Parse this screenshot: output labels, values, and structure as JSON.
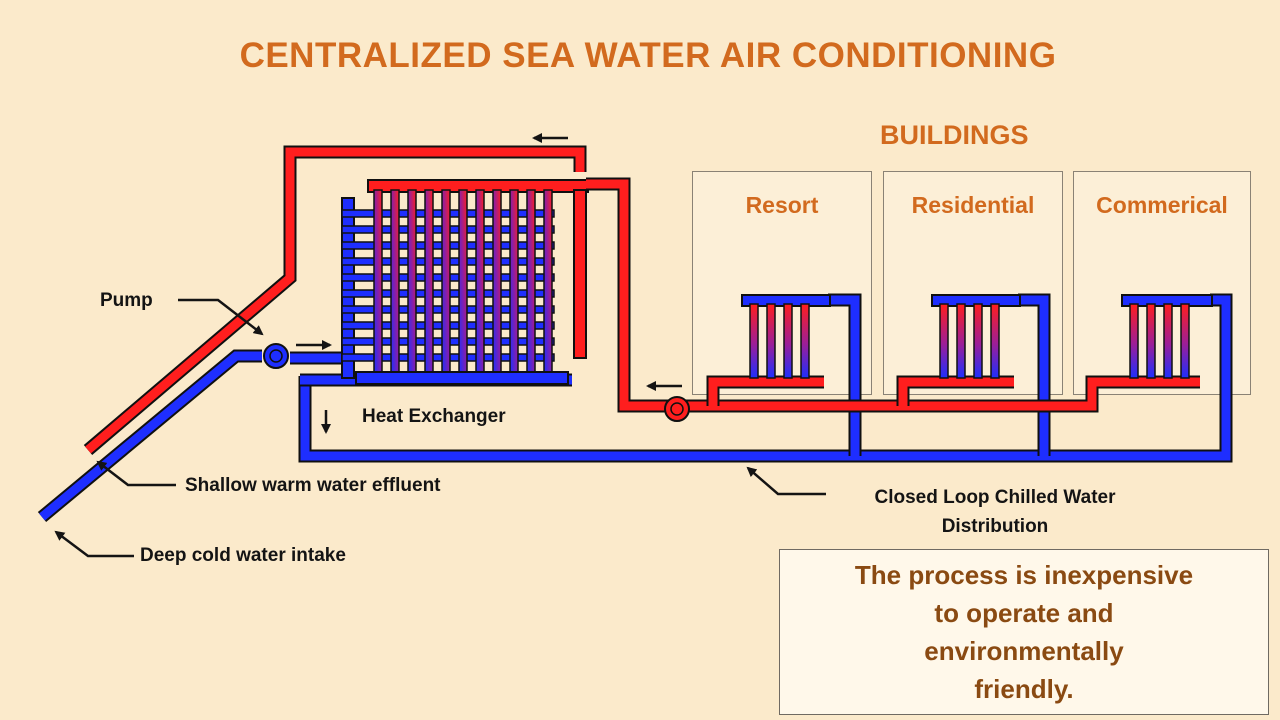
{
  "title": "CENTRALIZED SEA WATER AIR CONDITIONING",
  "buildings": {
    "heading": "BUILDINGS",
    "items": [
      {
        "label": "Resort"
      },
      {
        "label": "Residential"
      },
      {
        "label": "Commerical"
      }
    ]
  },
  "labels": {
    "pump": "Pump",
    "heat_exchanger": "Heat Exchanger",
    "shallow_effluent": "Shallow warm water effluent",
    "deep_intake": "Deep cold water intake",
    "closed_loop_line1": "Closed Loop Chilled Water",
    "closed_loop_line2": "Distribution"
  },
  "note": {
    "line1": "The process is inexpensive",
    "line2": "to operate and",
    "line3": "environmentally",
    "line4": "friendly."
  },
  "colors": {
    "background": "#fbeacb",
    "warm_pipe": "#ff1e1e",
    "cold_pipe": "#1e2eff",
    "accent_text": "#d26a1e",
    "note_text": "#8a4a12"
  }
}
